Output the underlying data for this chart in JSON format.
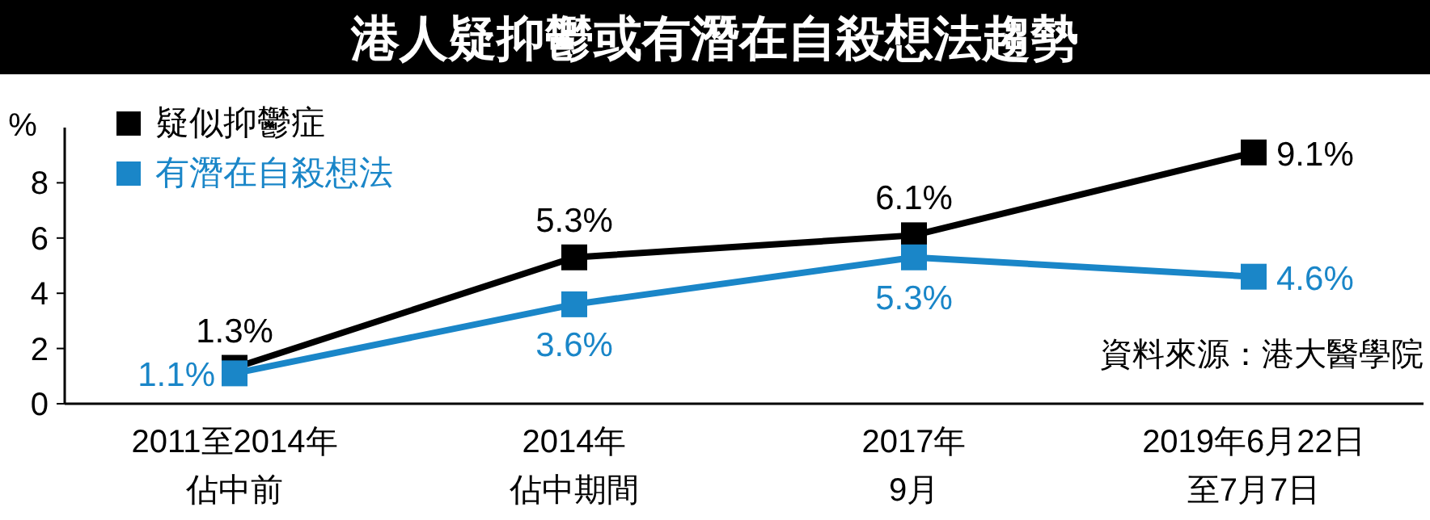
{
  "chart_data": {
    "type": "line",
    "title": "港人疑抑鬱或有潛在自殺想法趨勢",
    "ylabel": "%",
    "categories": [
      "2011至2014年佔中前",
      "2014年佔中期間",
      "2017年9月",
      "2019年6月22日至7月7日"
    ],
    "series": [
      {
        "name": "疑似抑鬱症",
        "color": "#000000",
        "values": [
          1.3,
          5.3,
          6.1,
          9.1
        ],
        "value_labels": [
          "1.3%",
          "5.3%",
          "6.1%",
          "9.1%"
        ]
      },
      {
        "name": "有潛在自殺想法",
        "color": "#1a86c8",
        "values": [
          1.1,
          3.6,
          5.3,
          4.6
        ],
        "value_labels": [
          "1.1%",
          "3.6%",
          "5.3%",
          "4.6%"
        ]
      }
    ],
    "ylim": [
      0,
      10
    ],
    "yticks": [
      0,
      2,
      4,
      6,
      8
    ],
    "marker": "square",
    "legend": "top left",
    "grid": false,
    "annotations": [
      "資料來源：港大醫學院"
    ]
  }
}
